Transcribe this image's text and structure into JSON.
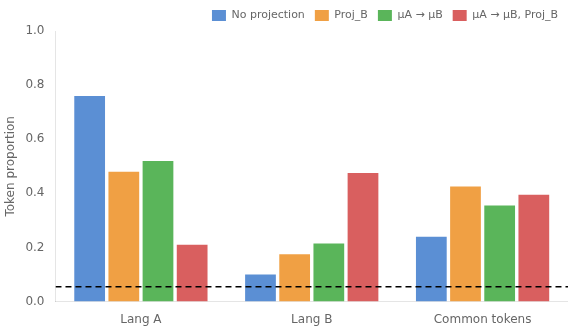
{
  "chart_data": {
    "type": "bar",
    "categories": [
      "Lang A",
      "Lang B",
      "Common tokens"
    ],
    "series": [
      {
        "name": "No projection",
        "color": "#5b8fd4",
        "values": [
          0.76,
          0.1,
          0.24
        ]
      },
      {
        "name": "Proj_B",
        "color": "#f0a044",
        "values": [
          0.48,
          0.175,
          0.425
        ]
      },
      {
        "name": "μA → μB",
        "color": "#5ab55a",
        "values": [
          0.52,
          0.215,
          0.355
        ]
      },
      {
        "name": "μA → μB, Proj_B",
        "color": "#d95f5f",
        "values": [
          0.21,
          0.475,
          0.395
        ]
      }
    ],
    "ylabel": "Token proportion",
    "ylim": [
      0.0,
      1.0
    ],
    "yticks": [
      {
        "value": 0,
        "label": "0.0"
      },
      0.2,
      0.4,
      0.6,
      0.8,
      {
        "value": 1,
        "label": "1.0"
      }
    ],
    "reference_lines": [
      {
        "y": 0.055,
        "color": "#000000",
        "line_style": "dashed"
      }
    ],
    "legend": "upper right",
    "grid": false
  }
}
